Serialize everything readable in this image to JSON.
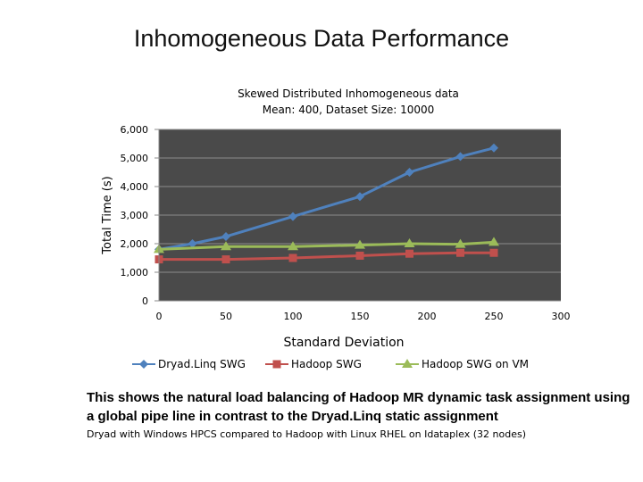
{
  "slide": {
    "title": "Inhomogeneous Data Performance",
    "caption": "This shows the natural load balancing of Hadoop MR dynamic task assignment using a global pipe line in contrast to the  Dryad.Linq static assignment",
    "note": "Dryad with Windows HPCS compared to Hadoop with Linux RHEL on Idataplex (32 nodes)"
  },
  "chart_data": {
    "type": "line",
    "title": "Skewed Distributed Inhomogeneous data",
    "subtitle": "Mean: 400, Dataset Size: 10000",
    "xlabel": "Standard Deviation",
    "ylabel": "Total Time (s)",
    "xlim": [
      0,
      300
    ],
    "ylim": [
      0,
      6000
    ],
    "xticks": [
      0,
      50,
      100,
      150,
      200,
      250,
      300
    ],
    "xtick_labels": [
      "0",
      "50",
      "100",
      "150",
      "200",
      "250",
      "300"
    ],
    "yticks": [
      0,
      1000,
      2000,
      3000,
      4000,
      5000,
      6000
    ],
    "ytick_labels": [
      "0",
      "1,000",
      "2,000",
      "3,000",
      "4,000",
      "5,000",
      "6,000"
    ],
    "grid": true,
    "plot_background": "#4a4a4a",
    "legend_position": "bottom",
    "series": [
      {
        "name": "Dryad.Linq SWG",
        "color": "#4f81bd",
        "marker": "diamond",
        "x": [
          0,
          25,
          50,
          100,
          150,
          187,
          225,
          250
        ],
        "y": [
          1800,
          2000,
          2250,
          2950,
          3650,
          4500,
          5050,
          5350
        ]
      },
      {
        "name": "Hadoop SWG",
        "color": "#c0504d",
        "marker": "square",
        "x": [
          0,
          50,
          100,
          150,
          187,
          225,
          250
        ],
        "y": [
          1450,
          1450,
          1500,
          1580,
          1650,
          1680,
          1680
        ]
      },
      {
        "name": "Hadoop SWG on VM",
        "color": "#9bbb59",
        "marker": "triangle",
        "x": [
          0,
          50,
          100,
          150,
          187,
          225,
          250
        ],
        "y": [
          1800,
          1900,
          1900,
          1950,
          2000,
          1980,
          2050
        ]
      }
    ]
  }
}
